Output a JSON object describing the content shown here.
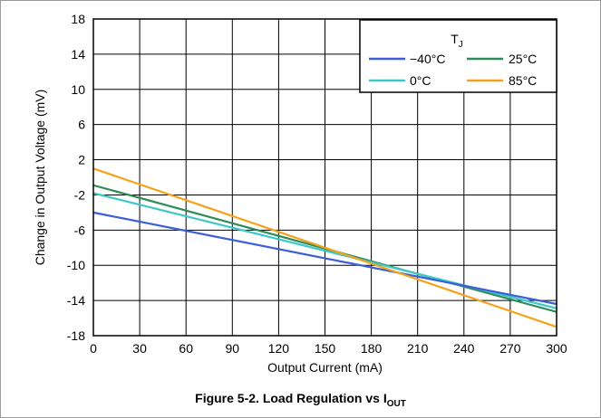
{
  "chart_data": {
    "type": "line",
    "xlabel": "Output Current (mA)",
    "ylabel": "Change in Output Voltage (mV)",
    "xlim": [
      0,
      300
    ],
    "ylim": [
      -18,
      18
    ],
    "x_ticks": [
      "0",
      "30",
      "60",
      "90",
      "120",
      "150",
      "180",
      "210",
      "240",
      "270",
      "300"
    ],
    "y_ticks": [
      "18",
      "14",
      "10",
      "6",
      "2",
      "-2",
      "-6",
      "-10",
      "-14",
      "-18"
    ],
    "grid": true,
    "legend_title": "T",
    "legend_title_sub": "J",
    "legend_placement": "top-right",
    "series": [
      {
        "name": "−40°C",
        "color": "#3a5fd9",
        "x": [
          0,
          300
        ],
        "y": [
          -4.0,
          -14.4
        ]
      },
      {
        "name": "25°C",
        "color": "#2e8b57",
        "x": [
          0,
          300
        ],
        "y": [
          -0.9,
          -15.3
        ]
      },
      {
        "name": "0°C",
        "color": "#3cc8c8",
        "x": [
          0,
          300
        ],
        "y": [
          -1.8,
          -14.9
        ]
      },
      {
        "name": "85°C",
        "color": "#f5a21a",
        "x": [
          0,
          300
        ],
        "y": [
          1.0,
          -17.0
        ]
      }
    ],
    "caption": {
      "main": "Figure 5-2. Load Regulation vs I",
      "sub": "OUT"
    }
  }
}
